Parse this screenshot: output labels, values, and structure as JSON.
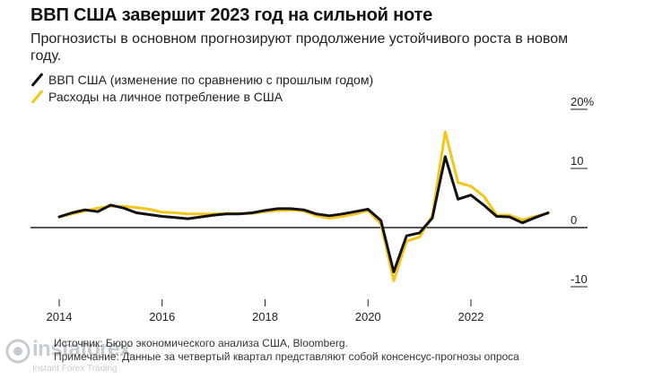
{
  "title": "ВВП США завершит 2023 год на сильной ноте",
  "subtitle": "Прогнозисты в основном прогнозируют продолжение устойчивого роста в новом году.",
  "legend": [
    {
      "label": "ВВП США (изменение по сравнению с прошлым годом)",
      "color": "#111111"
    },
    {
      "label": "Расходы на личное потребление в США",
      "color": "#f5c518"
    }
  ],
  "source": {
    "line1": "Источник: Бюро экономического анализа США, Bloomberg.",
    "line2": "Примечание: Данные за четвертый квартал представляют собой консенсус-прогнозы опроса"
  },
  "watermark": {
    "brand": "instaforex",
    "tagline": "Instant Forex Trading"
  },
  "chart_data": {
    "type": "line",
    "title": "ВВП США завершит 2023 год на сильной ноте",
    "xlabel": "",
    "ylabel": "",
    "x_ticks": [
      "2014",
      "2016",
      "2018",
      "2020",
      "2022"
    ],
    "y_ticks": [
      "20%",
      "10",
      "0",
      "-10"
    ],
    "ylim": [
      -12,
      20
    ],
    "xlim": [
      2013.75,
      2023.75
    ],
    "grid": false,
    "series": [
      {
        "name": "ВВП США (изменение по сравнению с прошлым годом)",
        "color": "#111111",
        "x": [
          2014.0,
          2014.25,
          2014.5,
          2014.75,
          2015.0,
          2015.25,
          2015.5,
          2015.75,
          2016.0,
          2016.25,
          2016.5,
          2016.75,
          2017.0,
          2017.25,
          2017.5,
          2017.75,
          2018.0,
          2018.25,
          2018.5,
          2018.75,
          2019.0,
          2019.25,
          2019.5,
          2019.75,
          2020.0,
          2020.25,
          2020.5,
          2020.75,
          2021.0,
          2021.25,
          2021.5,
          2021.75,
          2022.0,
          2022.25,
          2022.5,
          2022.75,
          2023.0,
          2023.25,
          2023.5
        ],
        "values": [
          1.8,
          2.5,
          3.0,
          2.7,
          3.8,
          3.3,
          2.5,
          2.2,
          1.9,
          1.7,
          1.5,
          1.8,
          2.1,
          2.3,
          2.3,
          2.5,
          2.9,
          3.2,
          3.2,
          3.0,
          2.3,
          2.0,
          2.3,
          2.7,
          3.1,
          1.2,
          -7.5,
          -1.4,
          -0.9,
          1.6,
          12.0,
          4.8,
          5.5,
          3.8,
          1.9,
          1.8,
          0.8,
          1.7,
          2.5
        ]
      },
      {
        "name": "Расходы на личное потребление в США",
        "color": "#f5c518",
        "x": [
          2014.0,
          2014.25,
          2014.5,
          2014.75,
          2015.0,
          2015.25,
          2015.5,
          2015.75,
          2016.0,
          2016.25,
          2016.5,
          2016.75,
          2017.0,
          2017.25,
          2017.5,
          2017.75,
          2018.0,
          2018.25,
          2018.5,
          2018.75,
          2019.0,
          2019.25,
          2019.5,
          2019.75,
          2020.0,
          2020.25,
          2020.5,
          2020.75,
          2021.0,
          2021.25,
          2021.5,
          2021.75,
          2022.0,
          2022.25,
          2022.5,
          2022.75,
          2023.0,
          2023.25,
          2023.5
        ],
        "values": [
          1.8,
          2.3,
          2.8,
          3.3,
          3.6,
          3.6,
          3.4,
          3.1,
          2.6,
          2.5,
          2.3,
          2.3,
          2.3,
          2.4,
          2.4,
          2.4,
          2.7,
          2.9,
          3.0,
          2.8,
          2.0,
          1.6,
          1.9,
          2.3,
          2.9,
          0.6,
          -9.0,
          -2.3,
          -1.6,
          2.0,
          16.2,
          7.6,
          7.0,
          5.3,
          2.1,
          2.1,
          1.3,
          1.9,
          2.4
        ]
      }
    ]
  }
}
